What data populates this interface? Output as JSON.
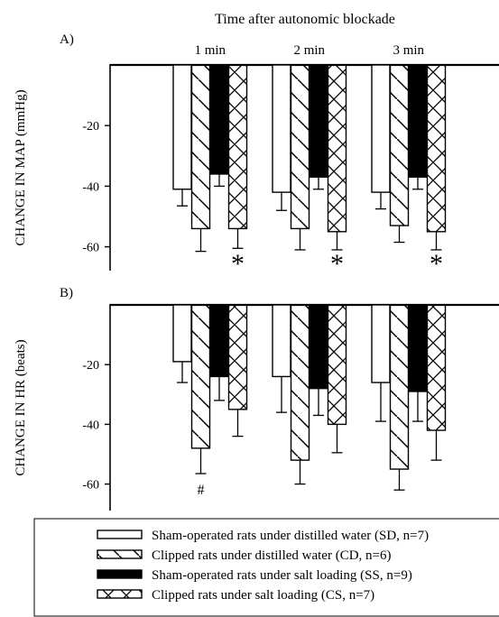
{
  "figure": {
    "header": "Time after autonomic blockade"
  },
  "colors": {
    "SD": "#ffffff",
    "CD": "#ffffff",
    "SS": "#000000",
    "CS": "#ffffff",
    "stroke": "#000000"
  },
  "chart_data": [
    {
      "id": "A",
      "type": "bar",
      "panel_label": "A)",
      "ylabel": "CHANGE IN MAP (mmHg)",
      "categories": [
        "1 min",
        "2 min",
        "3 min"
      ],
      "yticks": [
        -20,
        -40,
        -60
      ],
      "ylim": [
        -70,
        0
      ],
      "series": [
        {
          "name": "Sham-operated rats under distilled water (SD, n=7)",
          "key": "SD",
          "pattern": "open",
          "values": [
            -41,
            -42,
            -42
          ],
          "errors": [
            5.5,
            6,
            5.5
          ]
        },
        {
          "name": "Clipped rats under distilled water (CD, n=6)",
          "key": "CD",
          "pattern": "diagonal",
          "values": [
            -54,
            -54,
            -53
          ],
          "errors": [
            7.5,
            7,
            5.5
          ]
        },
        {
          "name": "Sham-operated rats under salt loading (SS, n=9)",
          "key": "SS",
          "pattern": "solid",
          "values": [
            -36,
            -37,
            -37
          ],
          "errors": [
            4,
            4,
            4
          ]
        },
        {
          "name": "Clipped rats under salt loading (CS, n=7)",
          "key": "CS",
          "pattern": "crosshatch",
          "values": [
            -54,
            -55,
            -55
          ],
          "errors": [
            6.5,
            6,
            6
          ]
        }
      ],
      "annotations": [
        {
          "text": "*",
          "category": "1 min",
          "series": "CS",
          "y": -66
        },
        {
          "text": "*",
          "category": "2 min",
          "series": "CS",
          "y": -66
        },
        {
          "text": "*",
          "category": "3 min",
          "series": "CS",
          "y": -66
        }
      ]
    },
    {
      "id": "B",
      "type": "bar",
      "panel_label": "B)",
      "ylabel": "CHANGE IN HR (beats)",
      "categories": [
        "1 min",
        "2 min",
        "3 min"
      ],
      "yticks": [
        -20,
        -40,
        -60
      ],
      "ylim": [
        -70,
        0
      ],
      "series": [
        {
          "name": "Sham-operated rats under distilled water (SD, n=7)",
          "key": "SD",
          "pattern": "open",
          "values": [
            -19,
            -24,
            -26
          ],
          "errors": [
            7,
            12,
            13
          ]
        },
        {
          "name": "Clipped rats under distilled water (CD, n=6)",
          "key": "CD",
          "pattern": "diagonal",
          "values": [
            -48,
            -52,
            -55
          ],
          "errors": [
            8.5,
            8,
            7
          ]
        },
        {
          "name": "Sham-operated rats under salt loading (SS, n=9)",
          "key": "SS",
          "pattern": "solid",
          "values": [
            -24,
            -28,
            -29
          ],
          "errors": [
            8,
            9,
            10
          ]
        },
        {
          "name": "Clipped rats under salt loading (CS, n=7)",
          "key": "CS",
          "pattern": "crosshatch",
          "values": [
            -35,
            -40,
            -42
          ],
          "errors": [
            9,
            9.5,
            10
          ]
        }
      ],
      "annotations": [
        {
          "text": "#",
          "category": "1 min",
          "series": "CD",
          "y": -61
        }
      ]
    }
  ],
  "legend": [
    {
      "label": "Sham-operated rats under distilled water (SD, n=7)",
      "key": "SD",
      "pattern": "open"
    },
    {
      "label": "Clipped rats under distilled water (CD, n=6)",
      "key": "CD",
      "pattern": "diagonal"
    },
    {
      "label": "Sham-operated rats under salt loading (SS, n=9)",
      "key": "SS",
      "pattern": "solid"
    },
    {
      "label": "Clipped rats under salt loading (CS, n=7)",
      "key": "CS",
      "pattern": "crosshatch"
    }
  ]
}
